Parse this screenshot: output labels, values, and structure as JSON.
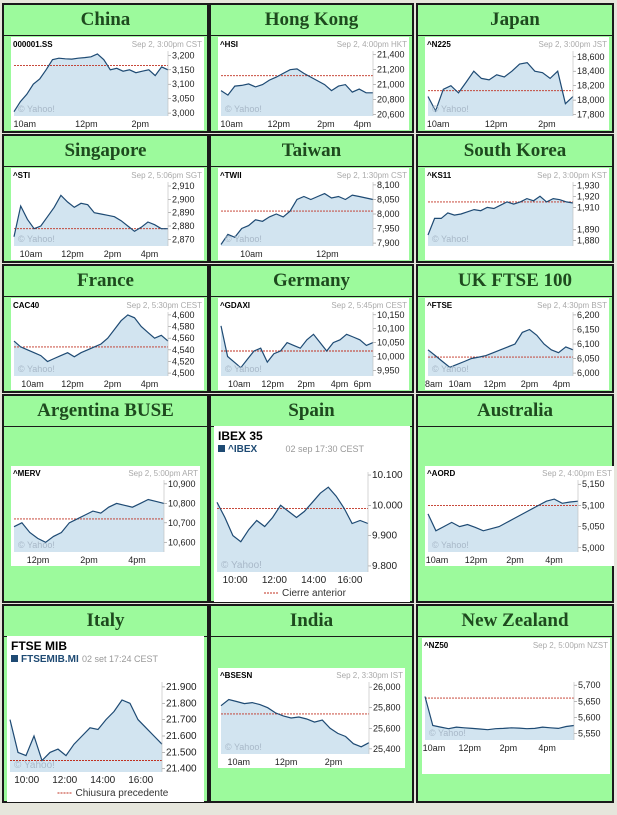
{
  "colors": {
    "cell_bg": "#9cfa9c",
    "title": "#1e4a1e",
    "line": "#1e4a73",
    "fill": "#d2e4f0",
    "ref": "#c03020"
  },
  "charts": [
    {
      "region": "China",
      "ticker": "000001.SS",
      "time": "Sep 2, 3:00pm CST",
      "watermark": "© Yahoo!",
      "yticks": [
        "3,200",
        "3,150",
        "3,100",
        "3,050",
        "3,000"
      ],
      "ytick_values": [
        3200,
        3150,
        3100,
        3050,
        3000
      ],
      "ylim": [
        2990,
        3215
      ],
      "xticks": [
        "10am",
        "12pm",
        "2pm"
      ],
      "xtick_pos": [
        0.07,
        0.47,
        0.82
      ],
      "ref": 3165,
      "values": [
        3005,
        3040,
        3065,
        3100,
        3118,
        3150,
        3185,
        3190,
        3188,
        3187,
        3190,
        3192,
        3195,
        3205,
        3185,
        3150,
        3155,
        3145,
        3150,
        3140,
        3145,
        3150,
        3130,
        3160,
        3150
      ]
    },
    {
      "region": "Hong Kong",
      "ticker": "^HSI",
      "time": "Sep 2, 4:00pm HKT",
      "watermark": "© Yahoo!",
      "yticks": [
        "21,400",
        "21,200",
        "21,000",
        "20,800",
        "20,600"
      ],
      "ytick_values": [
        21400,
        21200,
        21000,
        20800,
        20600
      ],
      "ylim": [
        20580,
        21450
      ],
      "xticks": [
        "10am",
        "12pm",
        "2pm",
        "4pm"
      ],
      "xtick_pos": [
        0.07,
        0.38,
        0.69,
        0.93
      ],
      "ref": 21120,
      "values": [
        20920,
        20860,
        20980,
        20990,
        21010,
        20970,
        21000,
        21060,
        21100,
        21150,
        21200,
        21210,
        21150,
        21100,
        21050,
        21000,
        20920,
        20980,
        21000,
        20900,
        20940,
        20890,
        20890
      ]
    },
    {
      "region": "Japan",
      "ticker": "^N225",
      "time": "Sep 2, 3:00pm JST",
      "watermark": "© Yahoo!",
      "yticks": [
        "18,600",
        "18,400",
        "18,200",
        "18,000",
        "17,800"
      ],
      "ytick_values": [
        18600,
        18400,
        18200,
        18000,
        17800
      ],
      "ylim": [
        17780,
        18680
      ],
      "xticks": [
        "10am",
        "12pm",
        "2pm"
      ],
      "xtick_pos": [
        0.07,
        0.47,
        0.82
      ],
      "ref": 18130,
      "values": [
        18050,
        17850,
        18150,
        18200,
        18100,
        18250,
        18400,
        18300,
        18280,
        18350,
        18320,
        18400,
        18500,
        18520,
        18400,
        18380,
        18300,
        18400,
        17950,
        18050
      ]
    },
    {
      "region": "Singapore",
      "ticker": "^STI",
      "time": "Sep 2, 5:06pm SGT",
      "watermark": "© Yahoo!",
      "yticks": [
        "2,910",
        "2,900",
        "2,890",
        "2,880",
        "2,870"
      ],
      "ytick_values": [
        2910,
        2900,
        2890,
        2880,
        2870
      ],
      "ylim": [
        2865,
        2913
      ],
      "xticks": [
        "10am",
        "12pm",
        "2pm",
        "4pm"
      ],
      "xtick_pos": [
        0.11,
        0.38,
        0.64,
        0.88
      ],
      "ref": 2878,
      "values": [
        2872,
        2895,
        2885,
        2878,
        2880,
        2887,
        2894,
        2903,
        2898,
        2894,
        2897,
        2896,
        2890,
        2889,
        2888,
        2887,
        2884,
        2880,
        2876,
        2879,
        2883,
        2881,
        2878,
        2878
      ]
    },
    {
      "region": "Taiwan",
      "ticker": "^TWII",
      "time": "Sep 2, 1:30pm CST",
      "watermark": "© Yahoo!",
      "yticks": [
        "8,100",
        "8,050",
        "8,000",
        "7,950",
        "7,900"
      ],
      "ytick_values": [
        8100,
        8050,
        8000,
        7950,
        7900
      ],
      "ylim": [
        7890,
        8110
      ],
      "xticks": [
        "10am",
        "12pm"
      ],
      "xtick_pos": [
        0.2,
        0.7
      ],
      "ref": 8010,
      "values": [
        7895,
        7930,
        7920,
        7950,
        7960,
        7980,
        7975,
        7990,
        8000,
        7990,
        8010,
        8050,
        8060,
        8050,
        8060,
        8070,
        8055,
        8060,
        8050,
        8065,
        8060,
        8055,
        8050
      ]
    },
    {
      "region": "South Korea",
      "ticker": "^KS11",
      "time": "Sep 2, 3:00pm KST",
      "watermark": "© Yahoo!",
      "yticks": [
        "1,930",
        "1,920",
        "1,910",
        "1,890",
        "1,880"
      ],
      "ytick_values": [
        1930,
        1920,
        1910,
        1890,
        1880
      ],
      "ylim": [
        1875,
        1933
      ],
      "xticks": [],
      "xtick_pos": [],
      "ref": 1915,
      "values": [
        1885,
        1900,
        1900,
        1905,
        1903,
        1904,
        1906,
        1908,
        1907,
        1910,
        1909,
        1912,
        1915,
        1913,
        1915,
        1918,
        1916,
        1920,
        1915,
        1918,
        1917,
        1915,
        1914
      ]
    },
    {
      "region": "France",
      "ticker": "CAC40",
      "time": "Sep 2, 5:30pm CEST",
      "watermark": "© Yahoo!",
      "yticks": [
        "4,600",
        "4,580",
        "4,560",
        "4,540",
        "4,520",
        "4,500"
      ],
      "ytick_values": [
        4600,
        4580,
        4560,
        4540,
        4520,
        4500
      ],
      "ylim": [
        4495,
        4605
      ],
      "xticks": [
        "10am",
        "12pm",
        "2pm",
        "4pm"
      ],
      "xtick_pos": [
        0.12,
        0.38,
        0.64,
        0.88
      ],
      "ref": 4545,
      "values": [
        4555,
        4545,
        4540,
        4535,
        4530,
        4520,
        4525,
        4530,
        4535,
        4528,
        4535,
        4540,
        4545,
        4550,
        4560,
        4575,
        4590,
        4600,
        4595,
        4580,
        4570,
        4560,
        4565,
        4555
      ]
    },
    {
      "region": "Germany",
      "ticker": "^GDAXI",
      "time": "Sep 2, 5:45pm CEST",
      "watermark": "© Yahoo!",
      "yticks": [
        "10,150",
        "10,100",
        "10,050",
        "10,000",
        "9,950"
      ],
      "ytick_values": [
        10150,
        10100,
        10050,
        10000,
        9950
      ],
      "ylim": [
        9930,
        10160
      ],
      "xticks": [
        "10am",
        "12pm",
        "2pm",
        "4pm",
        "6pm"
      ],
      "xtick_pos": [
        0.12,
        0.34,
        0.56,
        0.78,
        0.93
      ],
      "ref": 10020,
      "values": [
        10110,
        10000,
        9980,
        9960,
        9990,
        10020,
        10030,
        9980,
        10010,
        10020,
        10050,
        10040,
        10030,
        10060,
        10080,
        10050,
        10020,
        10050,
        10060,
        10080,
        10070,
        10060,
        10040,
        10050
      ]
    },
    {
      "region": "UK FTSE 100",
      "ticker": "^FTSE",
      "time": "Sep 2, 4:30pm BST",
      "watermark": "© Yahoo!",
      "yticks": [
        "6,200",
        "6,150",
        "6,100",
        "6,050",
        "6,000"
      ],
      "ytick_values": [
        6200,
        6150,
        6100,
        6050,
        6000
      ],
      "ylim": [
        5990,
        6210
      ],
      "xticks": [
        "8am",
        "10am",
        "12pm",
        "2pm",
        "4pm"
      ],
      "xtick_pos": [
        0.04,
        0.22,
        0.46,
        0.7,
        0.92
      ],
      "ref": 6055,
      "values": [
        6080,
        6060,
        6040,
        6020,
        6030,
        6040,
        6050,
        6055,
        6060,
        6070,
        6080,
        6090,
        6100,
        6140,
        6150,
        6130,
        6100,
        6080,
        6070,
        6090,
        6080
      ]
    },
    {
      "region": "Argentina BUSE",
      "ticker": "^MERV",
      "time": "Sep 2, 5:00pm ART",
      "watermark": "© Yahoo!",
      "yticks": [
        "10,900",
        "10,800",
        "10,700",
        "10,600"
      ],
      "ytick_values": [
        10900,
        10800,
        10700,
        10600
      ],
      "ylim": [
        10550,
        10920
      ],
      "xticks": [
        "12pm",
        "2pm",
        "4pm"
      ],
      "xtick_pos": [
        0.16,
        0.5,
        0.82
      ],
      "ref": 10720,
      "values": [
        10680,
        10700,
        10650,
        10620,
        10600,
        10630,
        10650,
        10700,
        10720,
        10740,
        10760,
        10750,
        10780,
        10800,
        10790,
        10780,
        10800,
        10820,
        10810,
        10800
      ]
    },
    {
      "region": "Spain",
      "ticker": "^IBEX",
      "time": "02 sep 17:30 CEST",
      "watermark": "© Yahoo!",
      "yticks": [
        "10.100",
        "10.000",
        "9.900",
        "9.800"
      ],
      "ytick_values": [
        10100,
        10000,
        9900,
        9800
      ],
      "ylim": [
        9780,
        10110
      ],
      "xticks": [
        "10:00",
        "12:00",
        "14:00",
        "16:00"
      ],
      "xtick_pos": [
        0.12,
        0.38,
        0.64,
        0.88
      ],
      "ref": 9990,
      "values": [
        10010,
        9960,
        9900,
        9880,
        9920,
        9950,
        9930,
        9960,
        10000,
        9980,
        9960,
        9980,
        10010,
        10040,
        10060,
        10030,
        9990,
        9940,
        9950,
        9940
      ]
    },
    {
      "region": "Australia",
      "ticker": "^AORD",
      "time": "Sep 2, 4:00pm EST",
      "watermark": "© Yahoo!",
      "yticks": [
        "5,150",
        "5,100",
        "5,050",
        "5,000"
      ],
      "ytick_values": [
        5150,
        5100,
        5050,
        5000
      ],
      "ylim": [
        4990,
        5160
      ],
      "xticks": [
        "10am",
        "12pm",
        "2pm",
        "4pm"
      ],
      "xtick_pos": [
        0.06,
        0.32,
        0.58,
        0.84
      ],
      "ref": 5100,
      "values": [
        5080,
        5040,
        5050,
        5060,
        5050,
        5055,
        5048,
        5040,
        5045,
        5050,
        5060,
        5070,
        5080,
        5090,
        5100,
        5110,
        5115,
        5105,
        5108,
        5110
      ]
    },
    {
      "region": "Italy",
      "ticker": "^FTSEMIB.MI",
      "time": "02 set 17:24 CEST",
      "watermark": "© Yahoo!",
      "yticks": [
        "21.900",
        "21.800",
        "21.700",
        "21.600",
        "21.500",
        "21.400"
      ],
      "ytick_values": [
        21900,
        21800,
        21700,
        21600,
        21500,
        21400
      ],
      "ylim": [
        21380,
        21930
      ],
      "xticks": [
        "10:00",
        "12:00",
        "14:00",
        "16:00"
      ],
      "xtick_pos": [
        0.11,
        0.36,
        0.61,
        0.86
      ],
      "ref": 21450,
      "values": [
        21700,
        21500,
        21480,
        21600,
        21450,
        21500,
        21520,
        21480,
        21550,
        21600,
        21650,
        21640,
        21700,
        21750,
        21820,
        21800,
        21700,
        21650,
        21600,
        21550
      ]
    },
    {
      "region": "India",
      "ticker": "^BSESN",
      "time": "Sep 2, 3:30pm IST",
      "watermark": "© Yahoo!",
      "yticks": [
        "26,000",
        "25,800",
        "25,600",
        "25,400"
      ],
      "ytick_values": [
        26000,
        25800,
        25600,
        25400
      ],
      "ylim": [
        25350,
        26050
      ],
      "xticks": [
        "10am",
        "12pm",
        "2pm"
      ],
      "xtick_pos": [
        0.12,
        0.44,
        0.76
      ],
      "ref": 25740,
      "values": [
        25820,
        25880,
        25860,
        25840,
        25850,
        25830,
        25800,
        25750,
        25720,
        25700,
        25710,
        25690,
        25660,
        25680,
        25600,
        25550,
        25520,
        25450,
        25420,
        25460
      ]
    },
    {
      "region": "New Zealand",
      "ticker": "^NZ50",
      "time": "Sep 2, 5:00pm NZST",
      "watermark": "© Yahoo!",
      "yticks": [
        "5,700",
        "5,650",
        "5,600",
        "5,550"
      ],
      "ytick_values": [
        5700,
        5650,
        5600,
        5550
      ],
      "ylim": [
        5530,
        5710
      ],
      "xticks": [
        "10am",
        "12pm",
        "2pm",
        "4pm"
      ],
      "xtick_pos": [
        0.06,
        0.3,
        0.56,
        0.82
      ],
      "ref": 5660,
      "values": [
        5665,
        5575,
        5570,
        5565,
        5570,
        5568,
        5566,
        5564,
        5562,
        5565,
        5566,
        5568,
        5567,
        5565,
        5566,
        5570,
        5568,
        5566,
        5572,
        5575
      ]
    }
  ],
  "large_header": {
    "Spain": {
      "name": "IBEX 35",
      "legend": "Cierre anterior"
    },
    "Italy": {
      "name": "FTSE MIB",
      "legend": "Chiusura precedente",
      "ticker_label": "FTSEMIB.MI"
    }
  }
}
